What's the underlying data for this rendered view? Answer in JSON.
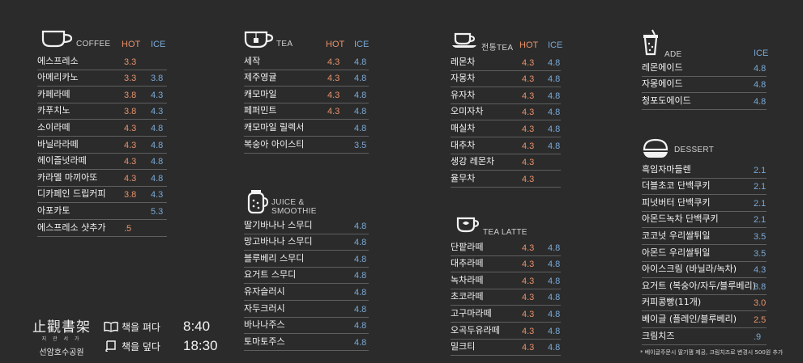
{
  "coffee": {
    "title": "COFFEE",
    "hot": "HOT",
    "ice": "ICE",
    "items": [
      {
        "name": "에스프레소",
        "hot": "3.3",
        "ice": ""
      },
      {
        "name": "아메리카노",
        "hot": "3.3",
        "ice": "3.8"
      },
      {
        "name": "카페라떼",
        "hot": "3.8",
        "ice": "4.3"
      },
      {
        "name": "카푸치노",
        "hot": "3.8",
        "ice": "4.3"
      },
      {
        "name": "소이라떼",
        "hot": "4.3",
        "ice": "4.8"
      },
      {
        "name": "바닐라라떼",
        "hot": "4.3",
        "ice": "4.8"
      },
      {
        "name": "헤이즐넛라떼",
        "hot": "4.3",
        "ice": "4.8"
      },
      {
        "name": "카라멜 마끼아또",
        "hot": "4.3",
        "ice": "4.8"
      },
      {
        "name": "디카페인 드립커피",
        "hot": "3.8",
        "ice": "4.3"
      },
      {
        "name": "아포카토",
        "hot": "",
        "ice": "5.3"
      },
      {
        "name": "에스프레소 샷추가",
        "hot": ".5",
        "ice": ""
      }
    ]
  },
  "tea": {
    "title": "TEA",
    "hot": "HOT",
    "ice": "ICE",
    "items": [
      {
        "name": "세작",
        "hot": "4.3",
        "ice": "4.8"
      },
      {
        "name": "제주영귤",
        "hot": "4.3",
        "ice": "4.8"
      },
      {
        "name": "캐모마일",
        "hot": "4.3",
        "ice": "4.8"
      },
      {
        "name": "페퍼민트",
        "hot": "4.3",
        "ice": "4.8"
      },
      {
        "name": "캐모마일 릴렉서",
        "hot": "",
        "ice": "4.8"
      },
      {
        "name": "복숭아 아이스티",
        "hot": "",
        "ice": "3.5"
      }
    ]
  },
  "juice": {
    "title1": "JUICE &",
    "title2": "SMOOTHIE",
    "items": [
      {
        "name": "딸기바나나 스무디",
        "price": "4.8"
      },
      {
        "name": "망고바나나 스무디",
        "price": "4.8"
      },
      {
        "name": "블루베리 스무디",
        "price": "4.8"
      },
      {
        "name": "요거트 스무디",
        "price": "4.8"
      },
      {
        "name": "유자슬러시",
        "price": "4.8"
      },
      {
        "name": "자두크러시",
        "price": "4.8"
      },
      {
        "name": "바나나주스",
        "price": "4.8"
      },
      {
        "name": "토마토주스",
        "price": "4.8"
      }
    ]
  },
  "traditional": {
    "title": "전통TEA",
    "hot": "HOT",
    "ice": "ICE",
    "items": [
      {
        "name": "레몬차",
        "hot": "4.3",
        "ice": "4.8"
      },
      {
        "name": "자몽차",
        "hot": "4.3",
        "ice": "4.8"
      },
      {
        "name": "유자차",
        "hot": "4.3",
        "ice": "4.8"
      },
      {
        "name": "오미자차",
        "hot": "4.3",
        "ice": "4.8"
      },
      {
        "name": "매실차",
        "hot": "4.3",
        "ice": "4.8"
      },
      {
        "name": "대추차",
        "hot": "4.3",
        "ice": "4.8"
      },
      {
        "name": "생강 레몬차",
        "hot": "4.3",
        "ice": ""
      },
      {
        "name": "율무차",
        "hot": "4.3",
        "ice": ""
      }
    ]
  },
  "tealatte": {
    "title": "TEA LATTE",
    "items": [
      {
        "name": "단팥라떼",
        "hot": "4.3",
        "ice": "4.8"
      },
      {
        "name": "대추라떼",
        "hot": "4.3",
        "ice": "4.8"
      },
      {
        "name": "녹차라떼",
        "hot": "4.3",
        "ice": "4.8"
      },
      {
        "name": "초코라떼",
        "hot": "4.3",
        "ice": "4.8"
      },
      {
        "name": "고구마라떼",
        "hot": "4.3",
        "ice": "4.8"
      },
      {
        "name": "오곡두유라떼",
        "hot": "4.3",
        "ice": "4.8"
      },
      {
        "name": "밀크티",
        "hot": "4.3",
        "ice": "4.8"
      }
    ]
  },
  "ade": {
    "title": "ADE",
    "ice": "ICE",
    "items": [
      {
        "name": "레몬에이드",
        "price": "4.8"
      },
      {
        "name": "자몽에이드",
        "price": "4.8"
      },
      {
        "name": "청포도에이드",
        "price": "4.8"
      }
    ]
  },
  "dessert": {
    "title": "DESSERT",
    "items": [
      {
        "name": "흑임자마들렌",
        "price": "2.1",
        "color": "#79a9d6"
      },
      {
        "name": "더블초코 단백쿠키",
        "price": "2.1",
        "color": "#79a9d6"
      },
      {
        "name": "피넛버터 단백쿠키",
        "price": "2.1",
        "color": "#79a9d6"
      },
      {
        "name": "아몬드녹차 단백쿠키",
        "price": "2.1",
        "color": "#79a9d6"
      },
      {
        "name": "코코넛 우리쌀튀일",
        "price": "3.5",
        "color": "#79a9d6"
      },
      {
        "name": "아몬드 우리쌀튀일",
        "price": "3.5",
        "color": "#79a9d6"
      },
      {
        "name": "아이스크림 (바닐라/녹차)",
        "price": "4.3",
        "color": "#79a9d6"
      },
      {
        "name": "요거트 (복숭아/자두/블루베리)",
        "price": "3.8",
        "color": "#79a9d6"
      },
      {
        "name": "커피콩빵(11개)",
        "price": "3.0",
        "color": "#e8916a"
      },
      {
        "name": "베이글 (플레인/블루베리)",
        "price": "2.5",
        "color": "#e8916a"
      },
      {
        "name": "크림치즈",
        "price": ".9",
        "color": "#79a9d6"
      }
    ],
    "note": "* 베이글주문시 딸기잼 제공, 크림치즈로 변경시 500원 추가"
  },
  "brand": {
    "name": "止觀書架",
    "reading": "지 관 서 가",
    "place": "선암호수공원"
  },
  "hours": {
    "open_label": "책을 펴다",
    "open_time": "8:40",
    "close_label": "책을 덮다",
    "close_time": "18:30"
  }
}
